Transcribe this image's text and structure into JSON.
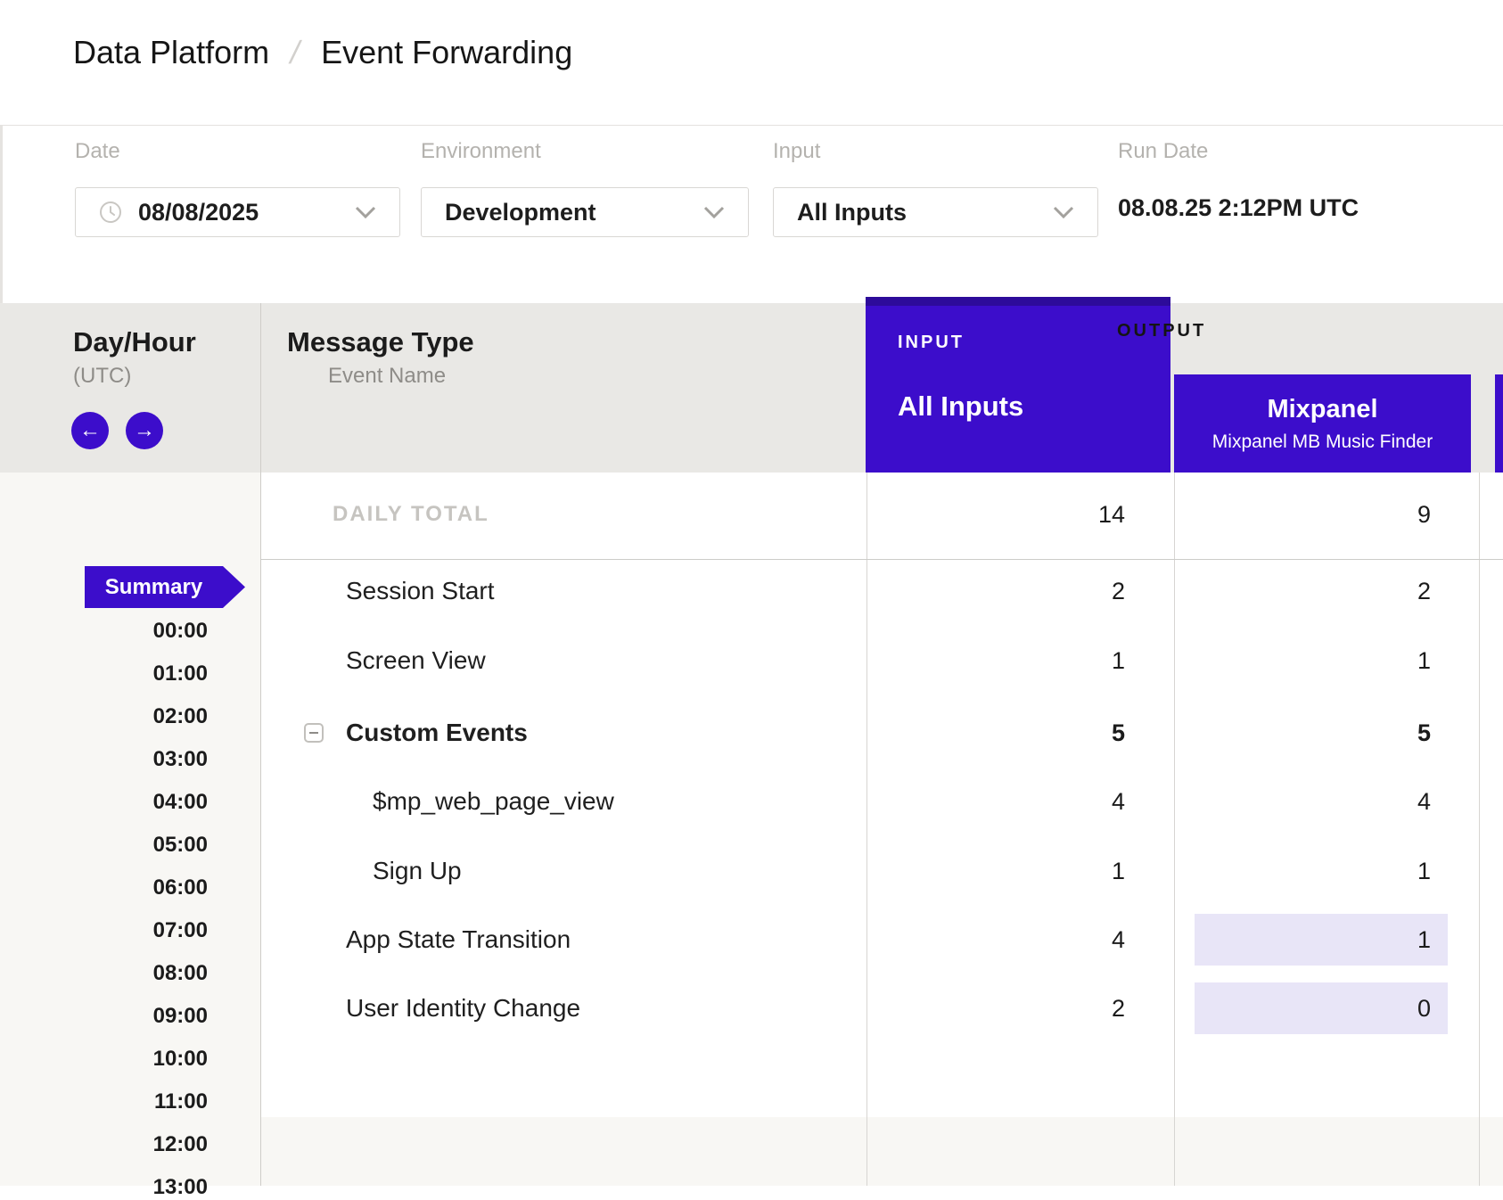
{
  "breadcrumb": {
    "parent": "Data Platform",
    "separator": "/",
    "current": "Event Forwarding"
  },
  "filters": {
    "date": {
      "label": "Date",
      "value": "08/08/2025"
    },
    "environment": {
      "label": "Environment",
      "value": "Development"
    },
    "input": {
      "label": "Input",
      "value": "All Inputs"
    },
    "run_date": {
      "label": "Run Date",
      "value": "08.08.25 2:12PM UTC"
    }
  },
  "table": {
    "day_hour": {
      "title": "Day/Hour",
      "subtitle": "(UTC)"
    },
    "message_type": {
      "title": "Message Type",
      "subtitle": "Event Name"
    },
    "input_column": {
      "section_label": "INPUT",
      "name": "All Inputs"
    },
    "output": {
      "section_label": "OUTPUT",
      "connector": {
        "name": "Mixpanel",
        "subtitle": "Mixpanel MB Music Finder"
      }
    },
    "daily_total": {
      "label": "DAILY TOTAL",
      "input": "14",
      "output": "9"
    },
    "summary_label": "Summary",
    "hours": [
      "00:00",
      "01:00",
      "02:00",
      "03:00",
      "04:00",
      "05:00",
      "06:00",
      "07:00",
      "08:00",
      "09:00",
      "10:00",
      "11:00",
      "12:00",
      "13:00"
    ],
    "rows": [
      {
        "label": "Session Start",
        "indent": 0,
        "bold": false,
        "collapser": false,
        "input": "2",
        "output": "2",
        "highlight": false
      },
      {
        "label": "Screen View",
        "indent": 0,
        "bold": false,
        "collapser": false,
        "input": "1",
        "output": "1",
        "highlight": false
      },
      {
        "label": "Custom Events",
        "indent": 0,
        "bold": true,
        "collapser": true,
        "input": "5",
        "output": "5",
        "highlight": false
      },
      {
        "label": "$mp_web_page_view",
        "indent": 1,
        "bold": false,
        "collapser": false,
        "input": "4",
        "output": "4",
        "highlight": false
      },
      {
        "label": "Sign Up",
        "indent": 1,
        "bold": false,
        "collapser": false,
        "input": "1",
        "output": "1",
        "highlight": false
      },
      {
        "label": "App State Transition",
        "indent": 0,
        "bold": false,
        "collapser": false,
        "input": "4",
        "output": "1",
        "highlight": true
      },
      {
        "label": "User Identity Change",
        "indent": 0,
        "bold": false,
        "collapser": false,
        "input": "2",
        "output": "0",
        "highlight": true
      }
    ]
  },
  "colors": {
    "purple": "#3c0dcb",
    "purple_dark": "#2d0b9a",
    "highlight": "#e8e5f7"
  }
}
